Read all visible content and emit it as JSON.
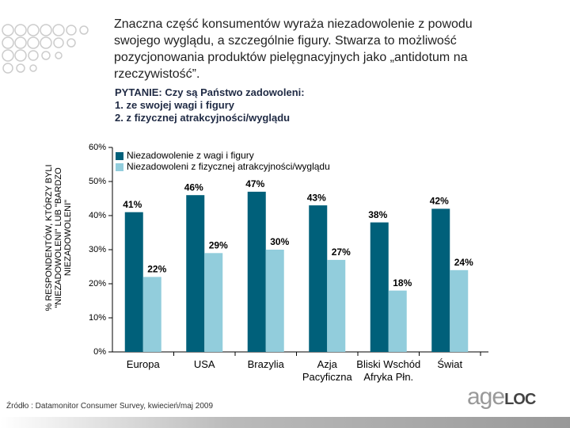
{
  "header": {
    "headline": "Znaczna część konsumentów wyraża niezadowolenie z powodu swojego wyglądu, a szczególnie figury. Stwarza to możliwość pozycjonowania produktów pielęgnacyjnych jako „antidotum na rzeczywistość”.",
    "question": [
      "PYTANIE: Czy są Państwo zadowoleni:",
      "1. ze swojej wagi i figury",
      "2. z fizycznej atrakcyjności/wyglądu"
    ]
  },
  "chart_data": {
    "type": "bar",
    "y_label": [
      "% RESPONDENTÓW, KTÓRZY BYLI",
      "\"NIEZADOWOLENI\" LUB \"BARDZO",
      "NIEZADOWOLENI\""
    ],
    "categories": [
      "Europa",
      "USA",
      "Brazylia",
      "Azja Pacyficzna",
      "Bliski Wschód Afryka Płn.",
      "Świat"
    ],
    "series": [
      {
        "name": "Niezadowolenie z wagi i figury",
        "color": "#00607a",
        "values": [
          41,
          46,
          47,
          43,
          38,
          42
        ],
        "value_labels": [
          "41%",
          "46%",
          "47%",
          "43%",
          "38%",
          "42%"
        ]
      },
      {
        "name": "Niezadowoleni z fizycznej atrakcyjności/wyglądu",
        "color": "#92cddc",
        "values": [
          22,
          29,
          30,
          27,
          18,
          24
        ],
        "value_labels": [
          "22%",
          "29%",
          "30%",
          "27%",
          "18%",
          "24%"
        ]
      }
    ],
    "ylim": [
      0,
      60
    ],
    "yticks": [
      {
        "value": 0,
        "label": "0%"
      },
      {
        "value": 10,
        "label": "10%"
      },
      {
        "value": 20,
        "label": "20%"
      },
      {
        "value": 30,
        "label": "30%"
      },
      {
        "value": 40,
        "label": "40%"
      },
      {
        "value": 50,
        "label": "50%"
      },
      {
        "value": 60,
        "label": "60%"
      }
    ],
    "legend": "top-left"
  },
  "footer": {
    "source": "Źródło : Datamonitor Consumer Survey, kwiecień/maj 2009",
    "logo": [
      "age",
      "LOC"
    ]
  }
}
